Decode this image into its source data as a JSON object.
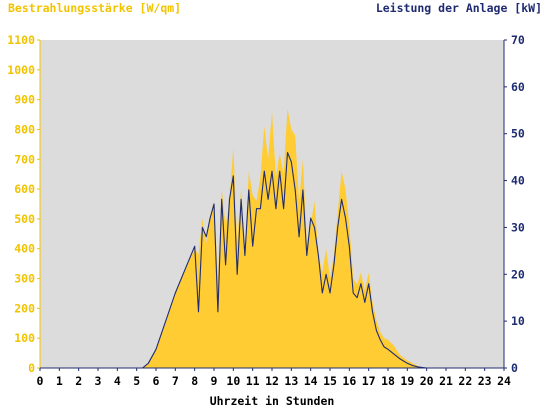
{
  "chart_data": {
    "type": "area",
    "title_left": "Bestrahlungsstärke [W/qm]",
    "title_right": "Leistung der Anlage [kW]",
    "xlabel": "Uhrzeit in Stunden",
    "x_ticks": [
      "0",
      "1",
      "2",
      "3",
      "4",
      "5",
      "6",
      "7",
      "8",
      "9",
      "10",
      "11",
      "12",
      "13",
      "14",
      "15",
      "16",
      "17",
      "18",
      "19",
      "20",
      "21",
      "22",
      "23",
      "24"
    ],
    "y_left_ticks": [
      "0",
      "100",
      "200",
      "300",
      "400",
      "500",
      "600",
      "700",
      "800",
      "900",
      "1000",
      "1100"
    ],
    "y_right_ticks": [
      "0",
      "10",
      "20",
      "30",
      "40",
      "50",
      "60",
      "70"
    ],
    "xlim": [
      0,
      24
    ],
    "ylim_left": [
      0,
      1100
    ],
    "ylim_right": [
      0,
      70
    ],
    "grid": false,
    "colors": {
      "plot_background": "#dcdcdc",
      "irradiance_fill": "#ffcc33",
      "power_line": "#1f2c72",
      "left_axis": "#f2c300",
      "right_axis": "#1f2c72",
      "x_axis_labels": "#000000"
    },
    "series": [
      {
        "axis": "left",
        "style": "filled-area",
        "x": [
          0,
          5.3,
          5.6,
          6.0,
          6.5,
          7.0,
          7.5,
          8.0,
          8.2,
          8.4,
          8.6,
          8.8,
          9.0,
          9.2,
          9.4,
          9.6,
          9.8,
          10.0,
          10.2,
          10.4,
          10.6,
          10.8,
          11.0,
          11.2,
          11.4,
          11.6,
          11.8,
          12.0,
          12.2,
          12.4,
          12.6,
          12.8,
          13.0,
          13.2,
          13.4,
          13.6,
          13.8,
          14.0,
          14.2,
          14.4,
          14.6,
          14.8,
          15.0,
          15.2,
          15.4,
          15.6,
          15.8,
          16.0,
          16.2,
          16.4,
          16.6,
          16.8,
          17.0,
          17.2,
          17.4,
          17.6,
          17.8,
          18.0,
          18.3,
          18.6,
          19.0,
          19.3,
          19.6,
          20.0,
          24
        ],
        "values": [
          0,
          0,
          15,
          60,
          150,
          250,
          330,
          400,
          380,
          500,
          420,
          510,
          560,
          300,
          600,
          480,
          560,
          740,
          420,
          600,
          380,
          660,
          580,
          560,
          640,
          810,
          700,
          860,
          640,
          720,
          650,
          870,
          800,
          780,
          560,
          700,
          420,
          480,
          560,
          380,
          320,
          400,
          300,
          380,
          520,
          660,
          600,
          480,
          300,
          280,
          320,
          260,
          320,
          220,
          160,
          120,
          100,
          95,
          75,
          45,
          25,
          15,
          5,
          0,
          0
        ]
      },
      {
        "axis": "right",
        "style": "line",
        "x": [
          0,
          5.3,
          5.6,
          6.0,
          6.5,
          7.0,
          7.5,
          8.0,
          8.2,
          8.4,
          8.6,
          8.8,
          9.0,
          9.2,
          9.4,
          9.6,
          9.8,
          10.0,
          10.2,
          10.4,
          10.6,
          10.8,
          11.0,
          11.2,
          11.4,
          11.6,
          11.8,
          12.0,
          12.2,
          12.4,
          12.6,
          12.8,
          13.0,
          13.2,
          13.4,
          13.6,
          13.8,
          14.0,
          14.2,
          14.4,
          14.6,
          14.8,
          15.0,
          15.2,
          15.4,
          15.6,
          15.8,
          16.0,
          16.2,
          16.4,
          16.6,
          16.8,
          17.0,
          17.2,
          17.4,
          17.6,
          17.8,
          18.0,
          18.3,
          18.6,
          19.0,
          19.3,
          19.6,
          20.0,
          24
        ],
        "values": [
          0,
          0,
          1,
          4,
          10,
          16,
          21,
          26,
          12,
          30,
          28,
          32,
          35,
          12,
          36,
          22,
          36,
          41,
          20,
          36,
          24,
          38,
          26,
          34,
          34,
          42,
          36,
          42,
          34,
          42,
          34,
          46,
          44,
          38,
          28,
          38,
          24,
          32,
          30,
          24,
          16,
          20,
          16,
          22,
          30,
          36,
          32,
          26,
          16,
          15,
          18,
          14,
          18,
          12,
          8,
          6,
          4.5,
          4,
          3,
          2,
          1,
          0.5,
          0.2,
          0,
          0
        ]
      }
    ]
  }
}
